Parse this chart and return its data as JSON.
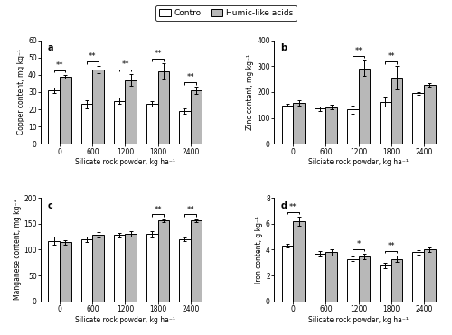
{
  "subplots": {
    "a": {
      "ylabel": "Copper content, mg kg⁻¹",
      "xlabel": "Silicate rock powder, kg ha⁻¹",
      "ylim": [
        0,
        60
      ],
      "yticks": [
        0,
        10,
        20,
        30,
        40,
        50,
        60
      ],
      "label": "a",
      "categories": [
        "0",
        "600",
        "1200",
        "1800",
        "2400"
      ],
      "control": [
        31,
        23,
        25,
        23,
        19
      ],
      "hla": [
        39,
        43,
        37,
        42,
        31
      ],
      "control_err": [
        1.5,
        2.5,
        2.0,
        1.5,
        1.5
      ],
      "hla_err": [
        1.0,
        2.0,
        3.5,
        4.5,
        2.0
      ],
      "significance": [
        "**",
        "**",
        "**",
        "**",
        "**"
      ]
    },
    "b": {
      "ylabel": "Zinc content, mg kg⁻¹",
      "xlabel": "Silciate rock powder, kg ha⁻¹",
      "ylim": [
        0,
        400
      ],
      "yticks": [
        0,
        100,
        200,
        300,
        400
      ],
      "label": "b",
      "categories": [
        "0",
        "600",
        "1200",
        "1800",
        "2400"
      ],
      "control": [
        148,
        136,
        132,
        163,
        196
      ],
      "hla": [
        158,
        142,
        292,
        255,
        227
      ],
      "control_err": [
        5,
        8,
        15,
        18,
        5
      ],
      "hla_err": [
        12,
        8,
        30,
        45,
        8
      ],
      "significance": [
        null,
        null,
        "**",
        "**",
        null
      ]
    },
    "c": {
      "ylabel": "Manganese content, mg kg⁻¹",
      "xlabel": "Silicate rock powder, kg ha⁻¹",
      "ylim": [
        0,
        200
      ],
      "yticks": [
        0,
        50,
        100,
        150,
        200
      ],
      "label": "c",
      "categories": [
        "0",
        "600",
        "1200",
        "1800",
        "2400"
      ],
      "control": [
        117,
        120,
        128,
        130,
        120
      ],
      "hla": [
        114,
        129,
        130,
        156,
        156
      ],
      "control_err": [
        8,
        5,
        5,
        6,
        3
      ],
      "hla_err": [
        5,
        5,
        5,
        3,
        3
      ],
      "significance": [
        null,
        null,
        null,
        "**",
        "**"
      ]
    },
    "d": {
      "ylabel": "Iron content, g kg⁻¹",
      "xlabel": "Silicate rock powder, kg ha⁻¹",
      "ylim": [
        0,
        8
      ],
      "yticks": [
        0,
        2,
        4,
        6,
        8
      ],
      "label": "d",
      "categories": [
        "0",
        "600",
        "1200",
        "1800",
        "2400"
      ],
      "control": [
        4.3,
        3.7,
        3.3,
        2.8,
        3.8
      ],
      "hla": [
        6.2,
        3.8,
        3.5,
        3.3,
        4.0
      ],
      "control_err": [
        0.15,
        0.2,
        0.15,
        0.2,
        0.15
      ],
      "hla_err": [
        0.35,
        0.25,
        0.2,
        0.25,
        0.15
      ],
      "significance": [
        "**",
        null,
        "*",
        "**",
        null
      ]
    }
  },
  "bar_width": 0.35,
  "control_color": "white",
  "hla_color": "#b8b8b8",
  "edge_color": "black",
  "legend_labels": [
    "Control",
    "Humic-like acids"
  ],
  "fig_width": 5.0,
  "fig_height": 3.71,
  "dpi": 100
}
